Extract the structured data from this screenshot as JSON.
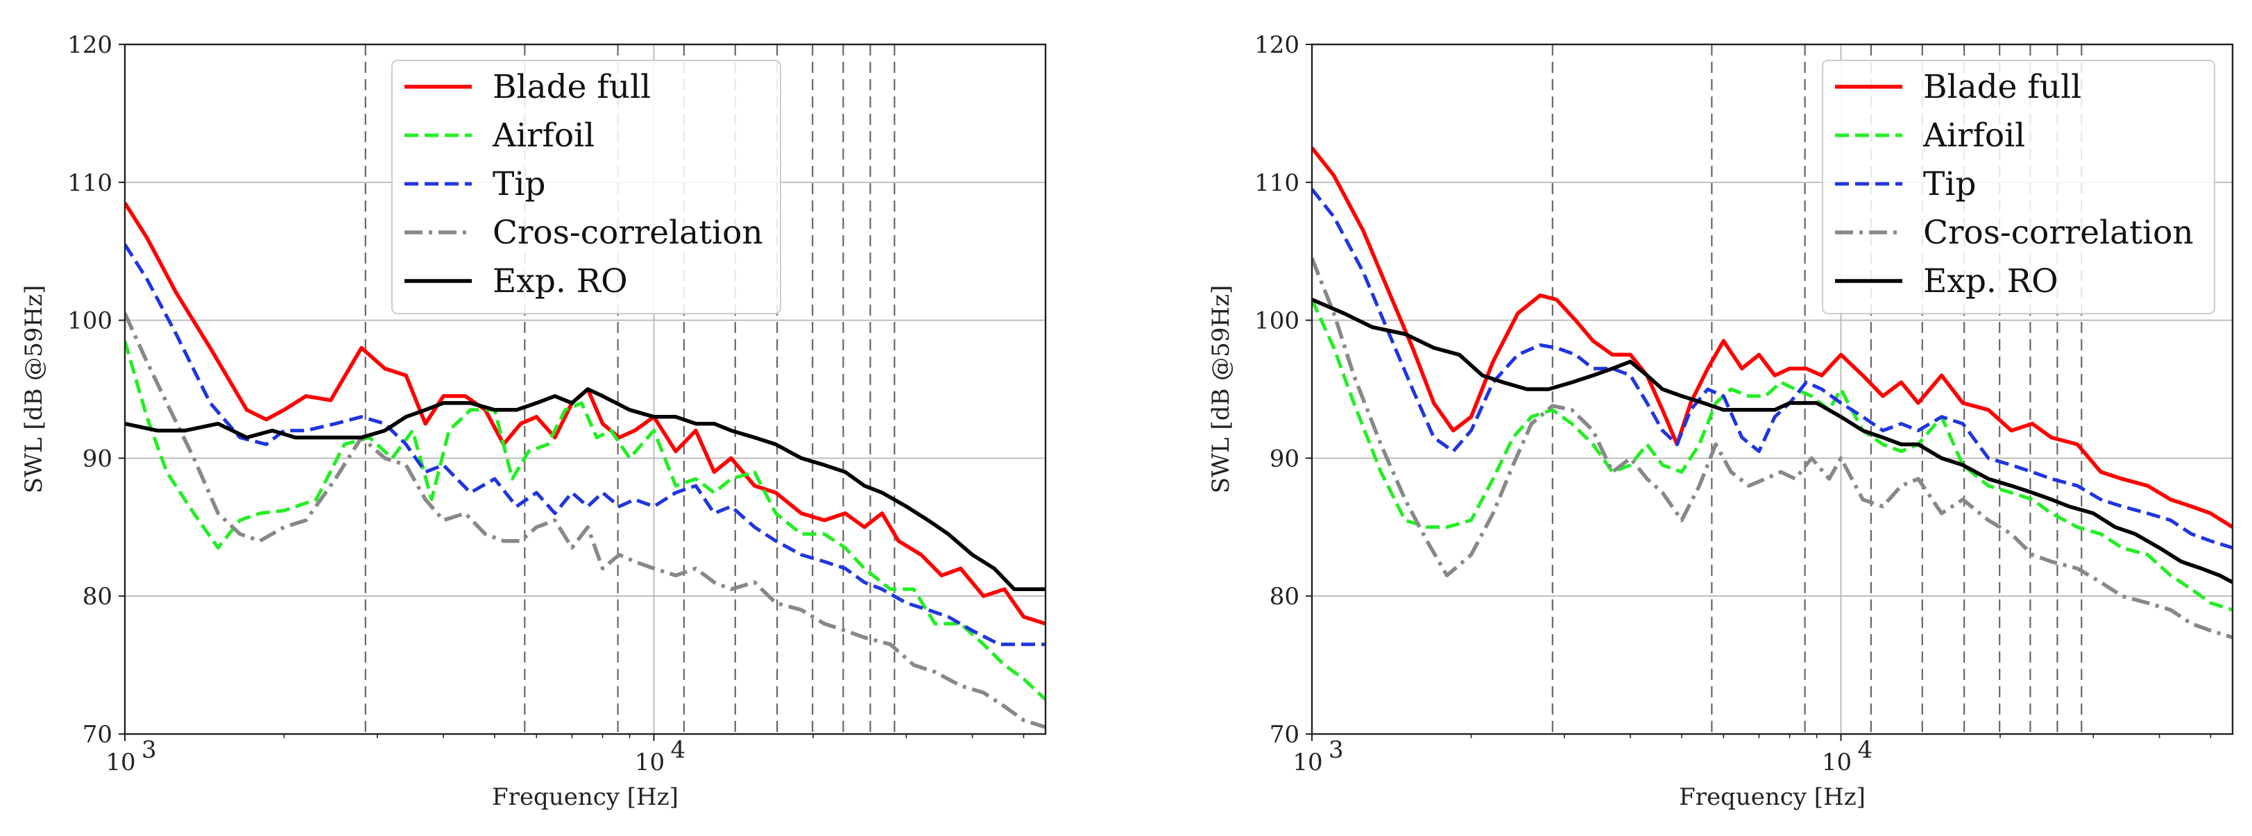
{
  "chart_data": [
    {
      "type": "line",
      "xscale": "log",
      "xlabel": "Frequency [Hz]",
      "ylabel": "SWL [dB @59Hz]",
      "xlim": [
        1000,
        55000
      ],
      "ylim": [
        70,
        120
      ],
      "yticks": [
        70,
        80,
        90,
        100,
        110,
        120
      ],
      "xticks": [
        {
          "value": 1000,
          "base": "10",
          "exp": "3"
        },
        {
          "value": 10000,
          "base": "10",
          "exp": "4"
        }
      ],
      "grid": true,
      "legend_position": "top-center",
      "vlines": [
        2850,
        5700,
        8550,
        11400,
        14250,
        17100,
        19950,
        22800,
        25650,
        28500
      ],
      "series": [
        {
          "name": "Blade full",
          "color": "#ff0000",
          "style": "solid",
          "x": [
            1000,
            1100,
            1250,
            1450,
            1700,
            1850,
            2000,
            2200,
            2450,
            2800,
            3100,
            3400,
            3700,
            4000,
            4400,
            4800,
            5200,
            5600,
            6000,
            6500,
            7000,
            7500,
            8000,
            8600,
            9200,
            10000,
            11000,
            12000,
            13000,
            14000,
            15500,
            17000,
            19000,
            21000,
            23000,
            25000,
            27000,
            29000,
            32000,
            35000,
            38000,
            42000,
            46000,
            50000,
            55000
          ],
          "values": [
            108.5,
            106,
            102,
            98,
            93.5,
            92.8,
            93.5,
            94.5,
            94.2,
            98,
            96.5,
            96,
            92.5,
            94.5,
            94.5,
            93.5,
            91,
            92.5,
            93,
            91.5,
            94,
            95,
            92.5,
            91.5,
            92,
            93,
            90.5,
            92,
            89,
            90,
            88,
            87.5,
            86,
            85.5,
            86,
            85,
            86,
            84,
            83,
            81.5,
            82,
            80,
            80.5,
            78.5,
            78
          ]
        },
        {
          "name": "Airfoil",
          "color": "#22ee22",
          "style": "dashed",
          "x": [
            1000,
            1100,
            1200,
            1350,
            1500,
            1650,
            1800,
            2000,
            2300,
            2600,
            2900,
            3200,
            3500,
            3800,
            4100,
            4500,
            5000,
            5400,
            5800,
            6300,
            6800,
            7300,
            7800,
            8300,
            9000,
            10000,
            11000,
            12000,
            13000,
            14000,
            15500,
            17000,
            19000,
            21000,
            23000,
            25000,
            28000,
            31000,
            34000,
            38000,
            42000,
            46000,
            50000,
            55000
          ],
          "values": [
            98.5,
            93,
            89,
            86,
            83.5,
            85.5,
            86,
            86.2,
            87,
            91,
            91.5,
            90,
            92,
            87,
            92,
            93.5,
            93.5,
            88.5,
            90.5,
            91,
            93.5,
            94,
            91.5,
            92,
            90,
            92,
            88,
            88.5,
            87.5,
            88.5,
            89,
            86,
            84.5,
            84.5,
            83.5,
            82,
            80.5,
            80.5,
            78,
            78,
            76.5,
            75,
            74,
            72.5
          ]
        },
        {
          "name": "Tip",
          "color": "#1f35e0",
          "style": "dashed",
          "x": [
            1000,
            1100,
            1250,
            1450,
            1650,
            1850,
            2000,
            2200,
            2500,
            2800,
            3100,
            3400,
            3700,
            4000,
            4500,
            5000,
            5500,
            6000,
            6500,
            7000,
            7500,
            8000,
            8600,
            9200,
            10000,
            11000,
            12000,
            13000,
            14000,
            15500,
            17000,
            19000,
            21000,
            23000,
            25000,
            27000,
            30000,
            33000,
            36000,
            40000,
            45000,
            50000,
            55000
          ],
          "values": [
            105.5,
            103,
            99,
            94,
            91.5,
            91,
            92,
            92,
            92.5,
            93,
            92.5,
            91,
            89,
            89.5,
            87.5,
            88.5,
            86.5,
            87.5,
            86,
            87.5,
            86.5,
            87.5,
            86.5,
            87,
            86.5,
            87.5,
            88,
            86,
            86.5,
            85,
            84,
            83,
            82.5,
            82,
            81,
            80.5,
            79.5,
            79,
            78.5,
            77.5,
            76.5,
            76.5,
            76.5
          ]
        },
        {
          "name": "Cros-correlation",
          "color": "#888888",
          "style": "dashdot",
          "x": [
            1000,
            1100,
            1200,
            1350,
            1500,
            1650,
            1800,
            2000,
            2200,
            2500,
            2800,
            3100,
            3400,
            3700,
            4000,
            4400,
            4800,
            5200,
            5600,
            6000,
            6500,
            7000,
            7500,
            8000,
            8600,
            9200,
            10000,
            11000,
            12000,
            13000,
            14000,
            15500,
            17000,
            19000,
            21000,
            23000,
            25000,
            28000,
            31000,
            34000,
            38000,
            42000,
            46000,
            50000,
            55000
          ],
          "values": [
            100.5,
            97,
            94,
            90,
            86,
            84.5,
            84,
            85,
            85.5,
            88.5,
            91.5,
            90,
            89.5,
            87,
            85.5,
            86,
            84.5,
            84,
            84,
            85,
            85.5,
            83.5,
            85,
            82,
            83,
            82.5,
            82,
            81.5,
            82,
            81,
            80.5,
            81,
            79.5,
            79,
            78,
            77.5,
            77,
            76.5,
            75,
            74.5,
            73.5,
            73,
            72,
            71,
            70.5
          ]
        },
        {
          "name": "Exp. RO",
          "color": "#000000",
          "style": "solid",
          "x": [
            1000,
            1150,
            1300,
            1500,
            1700,
            1900,
            2100,
            2300,
            2550,
            2800,
            3100,
            3400,
            3700,
            4000,
            4500,
            5000,
            5500,
            6000,
            6500,
            7000,
            7500,
            8000,
            9000,
            10000,
            11000,
            12000,
            13000,
            14000,
            15500,
            17000,
            19000,
            21000,
            23000,
            25000,
            27000,
            30000,
            33000,
            36000,
            40000,
            44000,
            48000,
            52000,
            55000
          ],
          "values": [
            92.5,
            92,
            92,
            92.5,
            91.5,
            92,
            91.5,
            91.5,
            91.5,
            91.5,
            92,
            93,
            93.5,
            94,
            94,
            93.5,
            93.5,
            94,
            94.5,
            94,
            95,
            94.5,
            93.5,
            93,
            93,
            92.5,
            92.5,
            92,
            91.5,
            91,
            90,
            89.5,
            89,
            88,
            87.5,
            86.5,
            85.5,
            84.5,
            83,
            82,
            80.5,
            80.5,
            80.5
          ]
        }
      ]
    },
    {
      "type": "line",
      "xscale": "log",
      "xlabel": "Frequency [Hz]",
      "ylabel": "SWL [dB @59Hz]",
      "xlim": [
        1000,
        55000
      ],
      "ylim": [
        70,
        120
      ],
      "yticks": [
        70,
        80,
        90,
        100,
        110,
        120
      ],
      "xticks": [
        {
          "value": 1000,
          "base": "10",
          "exp": "3"
        },
        {
          "value": 10000,
          "base": "10",
          "exp": "4"
        }
      ],
      "grid": true,
      "legend_position": "top-right",
      "vlines": [
        2850,
        5700,
        8550,
        11400,
        14250,
        17100,
        19950,
        22800,
        25650,
        28500
      ],
      "series": [
        {
          "name": "Blade full",
          "color": "#ff0000",
          "style": "solid",
          "x": [
            1000,
            1100,
            1250,
            1400,
            1550,
            1700,
            1850,
            2000,
            2200,
            2450,
            2700,
            2900,
            3150,
            3400,
            3700,
            4000,
            4300,
            4600,
            4900,
            5200,
            5600,
            6000,
            6500,
            7000,
            7500,
            8000,
            8600,
            9200,
            10000,
            11000,
            12000,
            13000,
            14000,
            15500,
            17000,
            19000,
            21000,
            23000,
            25000,
            28000,
            31000,
            34000,
            38000,
            42000,
            46000,
            50000,
            55000
          ],
          "values": [
            112.5,
            110.5,
            106.5,
            102,
            98,
            94,
            92,
            93,
            97,
            100.5,
            101.8,
            101.5,
            100,
            98.5,
            97.5,
            97.5,
            96,
            93.5,
            91,
            94,
            96.5,
            98.5,
            96.5,
            97.5,
            96,
            96.5,
            96.5,
            96,
            97.5,
            96,
            94.5,
            95.5,
            94,
            96,
            94,
            93.5,
            92,
            92.5,
            91.5,
            91,
            89,
            88.5,
            88,
            87,
            86.5,
            86,
            85
          ]
        },
        {
          "name": "Airfoil",
          "color": "#22ee22",
          "style": "dashed",
          "x": [
            1000,
            1100,
            1200,
            1350,
            1500,
            1650,
            1800,
            2000,
            2200,
            2400,
            2600,
            2850,
            3100,
            3400,
            3700,
            4000,
            4300,
            4600,
            5000,
            5400,
            5800,
            6200,
            6700,
            7200,
            7700,
            8200,
            8800,
            9500,
            10000,
            11000,
            12000,
            13000,
            14000,
            15500,
            17000,
            19000,
            21000,
            23000,
            25000,
            28000,
            31000,
            34000,
            38000,
            42000,
            46000,
            50000,
            55000
          ],
          "values": [
            101.5,
            98,
            94,
            89,
            85.5,
            85,
            85,
            85.5,
            88.5,
            91.5,
            93,
            93.5,
            92.5,
            91,
            89,
            89.5,
            91,
            89.5,
            89,
            91,
            94,
            95,
            94.5,
            94.5,
            95.5,
            95,
            94.5,
            93.5,
            95,
            92,
            91,
            90.5,
            91,
            93,
            89.5,
            88,
            87.5,
            87,
            86,
            85,
            84.5,
            83.5,
            83,
            81.5,
            80.5,
            79.5,
            79
          ]
        },
        {
          "name": "Tip",
          "color": "#1f35e0",
          "style": "dashed",
          "x": [
            1000,
            1100,
            1250,
            1400,
            1550,
            1700,
            1850,
            2000,
            2200,
            2450,
            2700,
            2900,
            3150,
            3400,
            3700,
            4000,
            4300,
            4600,
            4900,
            5200,
            5600,
            6000,
            6500,
            7000,
            7500,
            8000,
            8600,
            9200,
            10000,
            11000,
            12000,
            13000,
            14000,
            15500,
            17000,
            19000,
            21000,
            23000,
            25000,
            28000,
            31000,
            34000,
            38000,
            42000,
            46000,
            50000,
            55000
          ],
          "values": [
            109.5,
            107.5,
            103.5,
            99,
            95,
            91.5,
            90.5,
            92,
            95.5,
            97.5,
            98.2,
            98,
            97.5,
            96.5,
            96.5,
            96,
            94,
            92,
            91,
            93.5,
            95,
            94.5,
            91.5,
            90.5,
            93,
            94,
            95.5,
            95,
            94,
            93,
            92,
            92.5,
            92,
            93,
            92.5,
            90,
            89.5,
            89,
            88.5,
            88,
            87,
            86.5,
            86,
            85.5,
            84.5,
            84,
            83.5
          ]
        },
        {
          "name": "Cros-correlation",
          "color": "#888888",
          "style": "dashdot",
          "x": [
            1000,
            1100,
            1200,
            1350,
            1500,
            1650,
            1800,
            2000,
            2200,
            2400,
            2600,
            2850,
            3100,
            3400,
            3700,
            4000,
            4300,
            4600,
            5000,
            5400,
            5800,
            6200,
            6700,
            7200,
            7700,
            8200,
            8800,
            9500,
            10000,
            11000,
            12000,
            13000,
            14000,
            15500,
            17000,
            19000,
            21000,
            23000,
            25000,
            28000,
            31000,
            34000,
            38000,
            42000,
            46000,
            50000,
            55000
          ],
          "values": [
            104.5,
            100.5,
            96,
            91,
            87,
            84,
            81.5,
            83,
            86,
            89.5,
            92.5,
            93.8,
            93.5,
            92,
            89,
            90,
            88.5,
            87.5,
            85.5,
            88,
            91,
            89,
            88,
            88.5,
            89,
            88.5,
            90,
            88.5,
            90,
            87,
            86.5,
            88,
            88.5,
            86,
            87,
            85.5,
            84.5,
            83,
            82.5,
            82,
            81,
            80,
            79.5,
            79,
            78,
            77.5,
            77
          ]
        },
        {
          "name": "Exp. RO",
          "color": "#000000",
          "style": "solid",
          "x": [
            1000,
            1150,
            1300,
            1500,
            1700,
            1900,
            2100,
            2300,
            2550,
            2800,
            3100,
            3400,
            3700,
            4000,
            4300,
            4600,
            5000,
            5500,
            6000,
            6500,
            7000,
            7500,
            8000,
            9000,
            10000,
            11000,
            12000,
            13000,
            14000,
            15500,
            17000,
            19000,
            21000,
            23000,
            25000,
            27000,
            30000,
            33000,
            36000,
            40000,
            44000,
            48000,
            52000,
            55000
          ],
          "values": [
            101.5,
            100.5,
            99.5,
            99,
            98,
            97.5,
            96,
            95.5,
            95,
            95,
            95.5,
            96,
            96.5,
            97,
            96,
            95,
            94.5,
            94,
            93.5,
            93.5,
            93.5,
            93.5,
            94,
            94,
            93,
            92,
            91.5,
            91,
            91,
            90,
            89.5,
            88.5,
            88,
            87.5,
            87,
            86.5,
            86,
            85,
            84.5,
            83.5,
            82.5,
            82,
            81.5,
            81
          ]
        }
      ]
    }
  ]
}
